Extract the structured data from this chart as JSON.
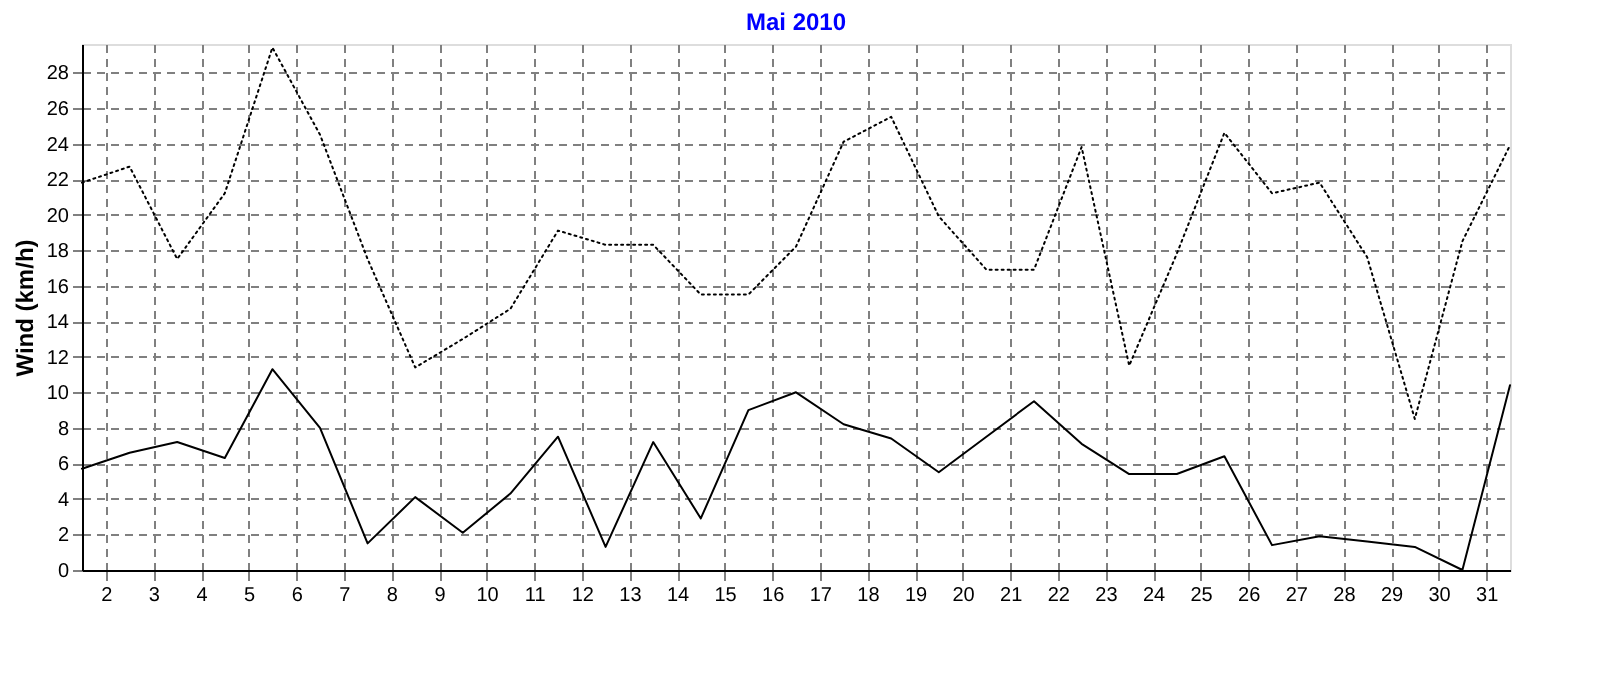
{
  "chart_data": {
    "type": "line",
    "title": "Mai 2010",
    "ylabel": "Wind  (km/h)",
    "x": [
      1.5,
      2.5,
      3.5,
      4.5,
      5.5,
      6.5,
      7.5,
      8.5,
      9.5,
      10.5,
      11.5,
      12.5,
      13.5,
      14.5,
      15.5,
      16.5,
      17.5,
      18.5,
      19.5,
      20.5,
      21.5,
      22.5,
      23.5,
      24.5,
      25.5,
      26.5,
      27.5,
      28.5,
      29.5,
      30.5,
      31.5
    ],
    "series": [
      {
        "color": "#000000",
        "line_style": "dotted",
        "values": [
          21.8,
          22.7,
          17.5,
          21.2,
          29.4,
          24.5,
          17.5,
          11.4,
          13.0,
          14.7,
          19.1,
          18.3,
          18.3,
          15.5,
          15.5,
          18.2,
          24.1,
          25.5,
          19.9,
          16.9,
          16.9,
          23.8,
          11.5,
          17.8,
          24.6,
          21.2,
          21.8,
          17.6,
          8.5,
          18.5,
          23.9
        ]
      },
      {
        "color": "#000000",
        "line_style": "solid",
        "values": [
          5.7,
          6.6,
          7.2,
          6.3,
          11.3,
          8.0,
          1.5,
          4.1,
          2.1,
          4.3,
          7.5,
          1.3,
          7.2,
          2.9,
          9.0,
          10.0,
          8.2,
          7.4,
          5.5,
          7.5,
          9.5,
          7.1,
          5.4,
          5.4,
          6.4,
          1.4,
          1.9,
          1.6,
          1.3,
          0,
          10.4
        ]
      }
    ],
    "xlim": [
      1.5,
      31.5
    ],
    "xticks": [
      2,
      3,
      4,
      5,
      6,
      7,
      8,
      9,
      10,
      11,
      12,
      13,
      14,
      15,
      16,
      17,
      18,
      19,
      20,
      21,
      22,
      23,
      24,
      25,
      26,
      27,
      28,
      29,
      30,
      31
    ],
    "ylim": [
      0,
      29.6
    ],
    "yticks": [
      0,
      2,
      4,
      6,
      8,
      10,
      12,
      14,
      16,
      18,
      20,
      22,
      24,
      26,
      28
    ],
    "grid": true,
    "marker": "none"
  }
}
